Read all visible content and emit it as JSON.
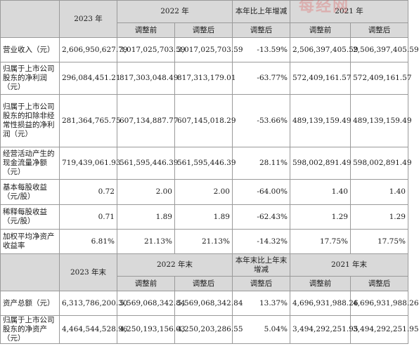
{
  "watermark": "每经网",
  "header1": {
    "y2023": "2023 年",
    "y2022": "2022 年",
    "change": "本年比上年增减",
    "y2021": "2021 年",
    "before": "调整前",
    "after": "调整后",
    "change_after": "调整后"
  },
  "rows1": [
    {
      "label": "营业收入（元）",
      "v2023": "2,606,950,627.79",
      "v2022a": "3,017,025,703.59",
      "v2022b": "3,017,025,703.59",
      "chg": "-13.59%",
      "v2021a": "2,506,397,405.59",
      "v2021b": "2,506,397,405.59"
    },
    {
      "label": "归属于上市公司股东的净利润（元）",
      "v2023": "296,084,451.21",
      "v2022a": "817,303,048.49",
      "v2022b": "817,313,179.01",
      "chg": "-63.77%",
      "v2021a": "572,409,161.57",
      "v2021b": "572,409,161.57"
    },
    {
      "label": "归属于上市公司股东的扣除非经常性损益的净利润（元）",
      "v2023": "281,364,765.75",
      "v2022a": "607,134,887.77",
      "v2022b": "607,145,018.29",
      "chg": "-53.66%",
      "v2021a": "489,139,159.49",
      "v2021b": "489,139,159.49"
    },
    {
      "label": "经营活动产生的现金流量净额（元）",
      "v2023": "719,439,061.93",
      "v2022a": "561,595,446.39",
      "v2022b": "561,595,446.39",
      "chg": "28.11%",
      "v2021a": "598,002,891.49",
      "v2021b": "598,002,891.49"
    },
    {
      "label": "基本每股收益（元/股）",
      "v2023": "0.72",
      "v2022a": "2.00",
      "v2022b": "2.00",
      "chg": "-64.00%",
      "v2021a": "1.40",
      "v2021b": "1.40"
    },
    {
      "label": "稀释每股收益（元/股）",
      "v2023": "0.71",
      "v2022a": "1.89",
      "v2022b": "1.89",
      "chg": "-62.43%",
      "v2021a": "1.29",
      "v2021b": "1.29"
    },
    {
      "label": "加权平均净资产收益率",
      "v2023": "6.81%",
      "v2022a": "21.13%",
      "v2022b": "21.13%",
      "chg": "-14.32%",
      "v2021a": "17.75%",
      "v2021b": "17.75%"
    }
  ],
  "header2": {
    "y2023": "2023 年末",
    "y2022": "2022 年末",
    "change": "本年末比上年末增减",
    "y2021": "2021 年末",
    "before": "调整前",
    "after": "调整后",
    "change_after": "调整后"
  },
  "rows2": [
    {
      "label": "资产总额（元）",
      "v2023": "6,313,786,200.30",
      "v2022a": "5,569,068,342.84",
      "v2022b": "5,569,068,342.84",
      "chg": "13.37%",
      "v2021a": "4,696,931,988.26",
      "v2021b": "4,696,931,988.26"
    },
    {
      "label": "归属于上市公司股东的净资产（元）",
      "v2023": "4,464,544,528.96",
      "v2022a": "4,250,193,156.03",
      "v2022b": "4,250,203,286.55",
      "chg": "5.04%",
      "v2021a": "3,494,292,251.95",
      "v2021b": "3,494,292,251.95"
    }
  ]
}
